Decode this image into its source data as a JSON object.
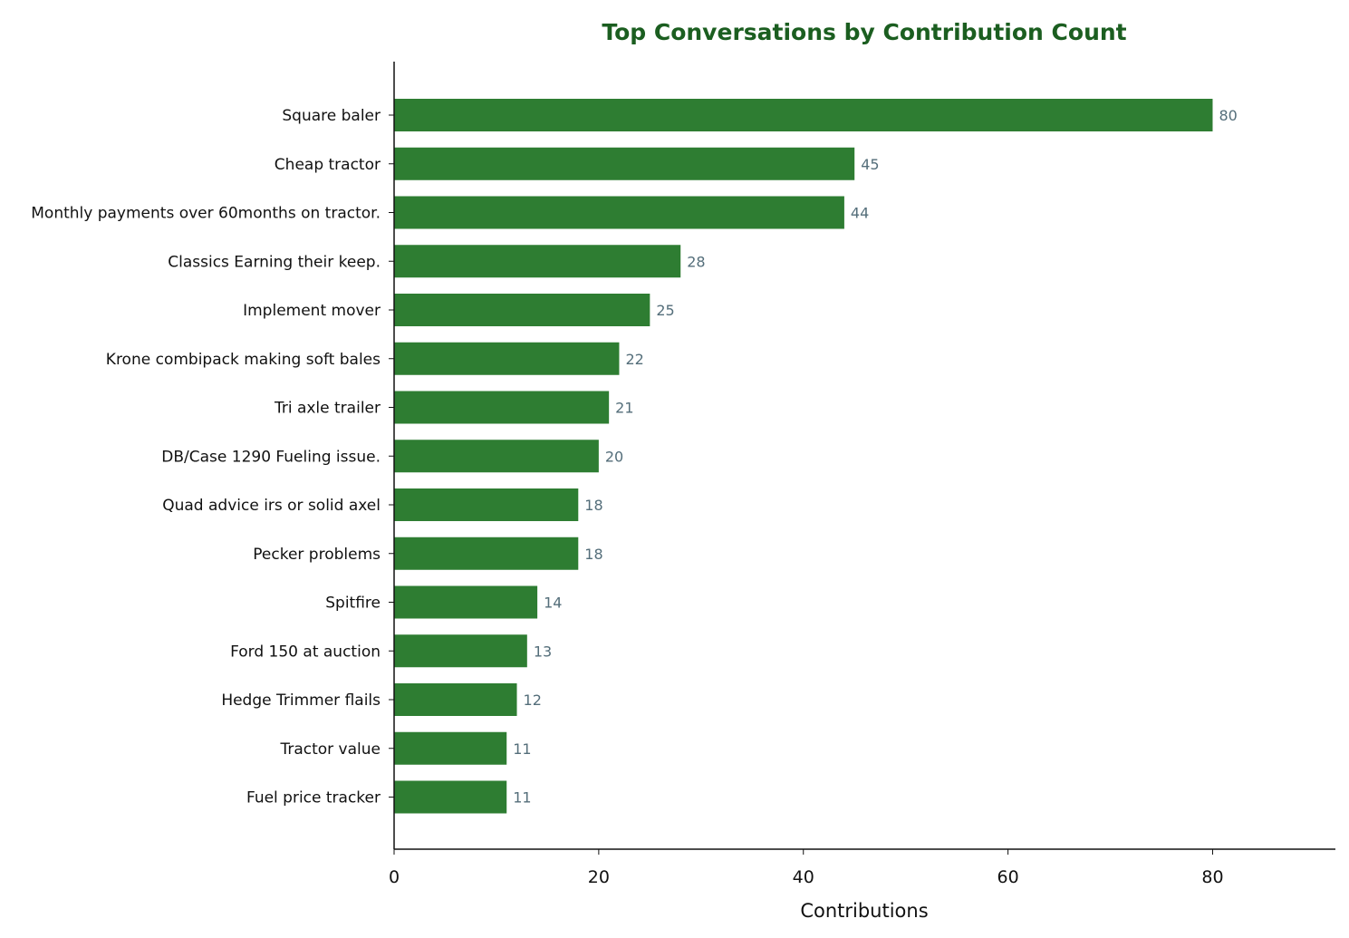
{
  "chart_data": {
    "type": "bar",
    "orientation": "horizontal",
    "title": "Top Conversations by Contribution Count",
    "xlabel": "Contributions",
    "ylabel": "",
    "xlim": [
      0,
      92
    ],
    "xticks": [
      0,
      20,
      40,
      60,
      80
    ],
    "grid": false,
    "legend": "none",
    "categories": [
      "Square baler",
      "Cheap tractor",
      "Monthly payments over 60months on tractor.",
      "Classics Earning their keep.",
      "Implement mover",
      "Krone combipack making soft bales",
      "Tri axle trailer",
      "DB/Case 1290 Fueling issue.",
      "Quad advice irs or solid axel",
      "Pecker problems",
      "Spitfire",
      "Ford 150 at auction",
      "Hedge Trimmer flails",
      "Tractor value",
      "Fuel price tracker"
    ],
    "values": [
      80,
      45,
      44,
      28,
      25,
      22,
      21,
      20,
      18,
      18,
      14,
      13,
      12,
      11,
      11
    ],
    "colors": {
      "bar": "#2e7d32",
      "title": "#1b5e20",
      "value_label": "#546e7a",
      "axis": "#111111"
    }
  }
}
